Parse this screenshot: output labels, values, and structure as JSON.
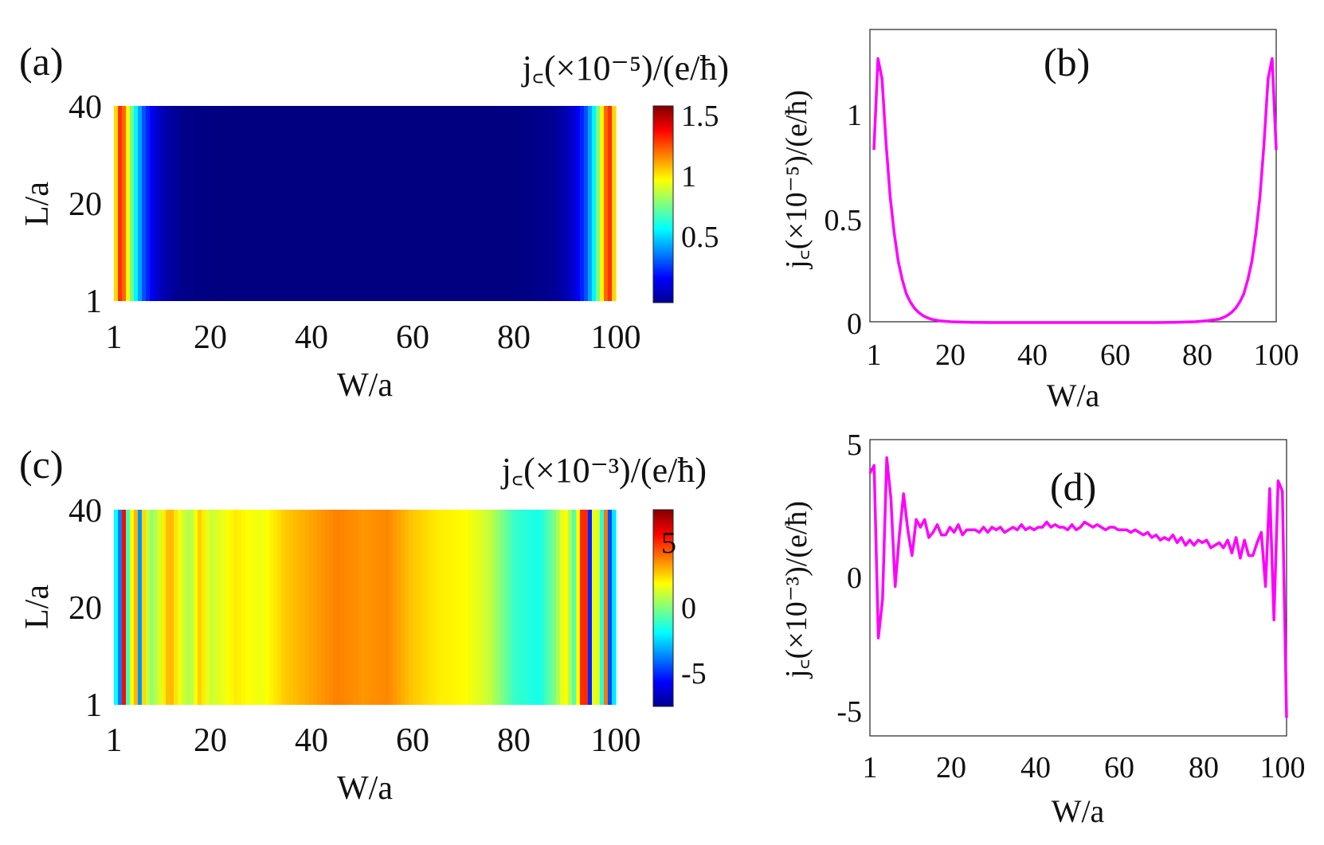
{
  "chart_data": [
    {
      "panel_label": "(a)",
      "type": "heatmap",
      "colorbar_title": "j꜀(×10⁻⁵)/(e/ħ)",
      "xlabel": "W/a",
      "ylabel": "L/a",
      "xticks": [
        "1",
        "20",
        "40",
        "60",
        "80",
        "100"
      ],
      "yticks": [
        "1",
        "20",
        "40"
      ],
      "xlim": [
        1,
        100
      ],
      "ylim": [
        1,
        40
      ],
      "colorbar_ticks": [
        "0.5",
        "1",
        "1.5"
      ],
      "colorbar_range": [
        0,
        1.55
      ],
      "colormap": "jet",
      "profile_along_W": [
        [
          1,
          0.85
        ],
        [
          2,
          1.3
        ],
        [
          3,
          1.2
        ],
        [
          5,
          0.62
        ],
        [
          7,
          0.3
        ],
        [
          9,
          0.14
        ],
        [
          11,
          0.07
        ],
        [
          13,
          0.035
        ],
        [
          15,
          0.017
        ],
        [
          20,
          0.004
        ],
        [
          25,
          0.001
        ],
        [
          50,
          0.0
        ],
        [
          75,
          0.001
        ],
        [
          80,
          0.004
        ],
        [
          86,
          0.017
        ],
        [
          88,
          0.035
        ],
        [
          90,
          0.07
        ],
        [
          92,
          0.14
        ],
        [
          94,
          0.3
        ],
        [
          96,
          0.62
        ],
        [
          98,
          1.2
        ],
        [
          99,
          1.3
        ],
        [
          100,
          0.85
        ]
      ]
    },
    {
      "panel_label": "(b)",
      "type": "line",
      "xlabel": "W/a",
      "ylabel": "j꜀(×10⁻⁵)/(e/ħ)",
      "xticks": [
        "1",
        "20",
        "40",
        "60",
        "80",
        "100"
      ],
      "yticks": [
        "0",
        "0.5",
        "1"
      ],
      "xlim": [
        1,
        100
      ],
      "ylim": [
        0,
        1.4
      ],
      "line_color": "#ff00ff",
      "series": [
        {
          "x": [
            1,
            2,
            3,
            4,
            5,
            6,
            7,
            8,
            9,
            10,
            11,
            12,
            13,
            14,
            15,
            17,
            20,
            25,
            30,
            40,
            50,
            60,
            70,
            75,
            80,
            83,
            86,
            87,
            88,
            89,
            90,
            91,
            92,
            93,
            94,
            95,
            96,
            97,
            98,
            99,
            100
          ],
          "values": [
            0.85,
            1.3,
            1.2,
            0.88,
            0.62,
            0.44,
            0.3,
            0.21,
            0.14,
            0.1,
            0.07,
            0.05,
            0.035,
            0.025,
            0.017,
            0.009,
            0.004,
            0.001,
            0.0,
            0.0,
            0.0,
            0.0,
            0.0,
            0.001,
            0.004,
            0.009,
            0.017,
            0.025,
            0.035,
            0.05,
            0.07,
            0.1,
            0.14,
            0.21,
            0.3,
            0.44,
            0.62,
            0.88,
            1.2,
            1.3,
            0.85
          ]
        }
      ]
    },
    {
      "panel_label": "(c)",
      "type": "heatmap",
      "colorbar_title": "j꜀(×10⁻³)/(e/ħ)",
      "xlabel": "W/a",
      "ylabel": "L/a",
      "xticks": [
        "1",
        "20",
        "40",
        "60",
        "80",
        "100"
      ],
      "yticks": [
        "1",
        "20",
        "40"
      ],
      "xlim": [
        1,
        100
      ],
      "ylim": [
        1,
        40
      ],
      "colorbar_ticks": [
        "-5",
        "0",
        "5"
      ],
      "colorbar_range": [
        -7,
        7
      ],
      "colormap": "jet",
      "profile_along_W": [
        [
          1,
          0.8
        ],
        [
          2,
          -5.5
        ],
        [
          3,
          5.5
        ],
        [
          4,
          -3.0
        ],
        [
          5,
          6.0
        ],
        [
          6,
          -4.0
        ],
        [
          7,
          3.0
        ],
        [
          8,
          0.0
        ],
        [
          10,
          1.2
        ],
        [
          12,
          3.0
        ],
        [
          14,
          1.5
        ],
        [
          16,
          0.5
        ],
        [
          18,
          2.5
        ],
        [
          20,
          1.0
        ],
        [
          25,
          2.0
        ],
        [
          30,
          1.5
        ],
        [
          35,
          2.5
        ],
        [
          40,
          3.0
        ],
        [
          45,
          3.5
        ],
        [
          50,
          3.2
        ],
        [
          55,
          3.4
        ],
        [
          60,
          2.5
        ],
        [
          65,
          2.0
        ],
        [
          70,
          1.8
        ],
        [
          75,
          1.0
        ],
        [
          80,
          -1.0
        ],
        [
          85,
          -1.5
        ],
        [
          88,
          0.0
        ],
        [
          90,
          2.0
        ],
        [
          92,
          -1.0
        ],
        [
          93,
          4.0
        ],
        [
          94,
          6.0
        ],
        [
          95,
          -6.0
        ],
        [
          96,
          5.0
        ],
        [
          97,
          -3.0
        ],
        [
          98,
          4.0
        ],
        [
          99,
          -6.0
        ],
        [
          100,
          0.5
        ]
      ]
    },
    {
      "panel_label": "(d)",
      "type": "line",
      "xlabel": "W/a",
      "ylabel": "j꜀(×10⁻³)/(e/ħ)",
      "xticks": [
        "1",
        "20",
        "40",
        "60",
        "80",
        "100"
      ],
      "yticks": [
        "-5",
        "0",
        "5"
      ],
      "xlim": [
        1,
        100
      ],
      "ylim": [
        -6,
        5.5
      ],
      "line_color": "#ff00ff",
      "series": [
        {
          "x": [
            1,
            2,
            3,
            4,
            5,
            6,
            7,
            8,
            9,
            10,
            11,
            12,
            13,
            14,
            15,
            16,
            17,
            18,
            19,
            20,
            21,
            22,
            23,
            24,
            25,
            26,
            27,
            28,
            29,
            30,
            31,
            32,
            33,
            34,
            35,
            36,
            37,
            38,
            39,
            40,
            41,
            42,
            43,
            44,
            45,
            46,
            47,
            48,
            49,
            50,
            51,
            52,
            53,
            54,
            55,
            56,
            57,
            58,
            59,
            60,
            61,
            62,
            63,
            64,
            65,
            66,
            67,
            68,
            69,
            70,
            71,
            72,
            73,
            74,
            75,
            76,
            77,
            78,
            79,
            80,
            81,
            82,
            83,
            84,
            85,
            86,
            87,
            88,
            89,
            90,
            91,
            92,
            93,
            94,
            95,
            96,
            97,
            98,
            99,
            100
          ],
          "values": [
            4.2,
            4.5,
            -2.2,
            -0.7,
            4.8,
            3.2,
            -0.2,
            1.8,
            3.4,
            2.0,
            1.0,
            2.4,
            2.1,
            2.4,
            1.7,
            1.9,
            2.2,
            1.8,
            1.8,
            2.1,
            1.9,
            2.2,
            1.8,
            2.0,
            2.0,
            2.0,
            1.9,
            2.1,
            1.9,
            2.1,
            2.0,
            2.1,
            1.9,
            2.0,
            2.1,
            2.0,
            2.2,
            2.0,
            2.1,
            2.0,
            2.1,
            2.1,
            2.3,
            2.1,
            2.2,
            2.1,
            2.1,
            2.0,
            2.2,
            2.0,
            2.1,
            2.3,
            2.2,
            2.1,
            2.2,
            2.1,
            2.0,
            2.1,
            2.1,
            2.0,
            2.0,
            2.0,
            1.9,
            2.0,
            1.9,
            1.8,
            1.9,
            1.7,
            1.8,
            1.6,
            1.7,
            1.6,
            1.8,
            1.5,
            1.7,
            1.4,
            1.6,
            1.4,
            1.6,
            1.5,
            1.6,
            1.3,
            1.4,
            1.5,
            1.3,
            1.6,
            1.1,
            1.7,
            0.9,
            1.6,
            1.0,
            1.0,
            1.5,
            1.9,
            -0.2,
            3.6,
            -1.5,
            3.9,
            3.5,
            -5.3
          ]
        }
      ]
    }
  ]
}
